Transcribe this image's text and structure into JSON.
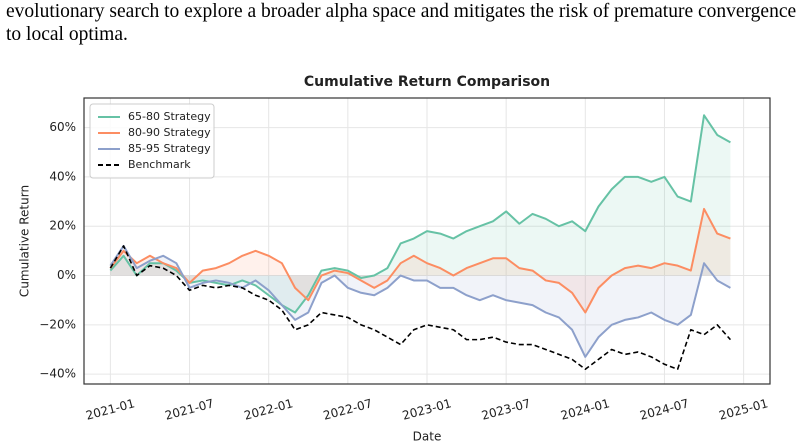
{
  "paragraph": "evolutionary search to explore a broader alpha space and mitigates the risk of premature convergence to local optima.",
  "chart_data": {
    "type": "line",
    "title": "Cumulative Return Comparison",
    "x_label": "Date",
    "y_label": "Cumulative Return",
    "x": [
      "2021-01",
      "2021-02",
      "2021-03",
      "2021-04",
      "2021-05",
      "2021-06",
      "2021-07",
      "2021-08",
      "2021-09",
      "2021-10",
      "2021-11",
      "2021-12",
      "2022-01",
      "2022-02",
      "2022-03",
      "2022-04",
      "2022-05",
      "2022-06",
      "2022-07",
      "2022-08",
      "2022-09",
      "2022-10",
      "2022-11",
      "2022-12",
      "2023-01",
      "2023-02",
      "2023-03",
      "2023-04",
      "2023-05",
      "2023-06",
      "2023-07",
      "2023-08",
      "2023-09",
      "2023-10",
      "2023-11",
      "2023-12",
      "2024-01",
      "2024-02",
      "2024-03",
      "2024-04",
      "2024-05",
      "2024-06",
      "2024-07",
      "2024-08",
      "2024-09",
      "2024-10",
      "2024-11",
      "2024-12"
    ],
    "series": [
      {
        "name": "65-80 Strategy",
        "color": "#66c2a5",
        "fill": true,
        "values": [
          2,
          8,
          0,
          5,
          5,
          2,
          -3,
          -2,
          -3,
          -4,
          -2,
          -4,
          -8,
          -12,
          -15,
          -8,
          2,
          3,
          2,
          -1,
          0,
          3,
          13,
          15,
          18,
          17,
          15,
          18,
          20,
          22,
          26,
          21,
          25,
          23,
          20,
          22,
          18,
          28,
          35,
          40,
          40,
          38,
          40,
          32,
          30,
          65,
          57,
          54
        ]
      },
      {
        "name": "80-90 Strategy",
        "color": "#fc8d62",
        "fill": true,
        "values": [
          3,
          10,
          5,
          8,
          5,
          3,
          -3,
          2,
          3,
          5,
          8,
          10,
          8,
          5,
          -5,
          -10,
          0,
          2,
          1,
          -2,
          -5,
          -2,
          5,
          8,
          5,
          3,
          0,
          3,
          5,
          7,
          7,
          3,
          2,
          -2,
          -3,
          -7,
          -15,
          -5,
          0,
          3,
          4,
          3,
          5,
          4,
          2,
          27,
          17,
          15
        ]
      },
      {
        "name": "85-95 Strategy",
        "color": "#8da0cb",
        "fill": true,
        "values": [
          4,
          12,
          3,
          6,
          8,
          5,
          -5,
          -3,
          -2,
          -3,
          -5,
          -2,
          -6,
          -12,
          -18,
          -15,
          -3,
          0,
          -5,
          -7,
          -8,
          -5,
          0,
          -2,
          -2,
          -5,
          -5,
          -8,
          -10,
          -8,
          -10,
          -11,
          -12,
          -15,
          -17,
          -22,
          -33,
          -25,
          -20,
          -18,
          -17,
          -15,
          -18,
          -20,
          -16,
          5,
          -2,
          -5
        ]
      },
      {
        "name": "Benchmark",
        "color": "#000000",
        "linestyle": "dashed",
        "values": [
          3,
          12,
          0,
          4,
          3,
          0,
          -6,
          -4,
          -5,
          -4,
          -5,
          -8,
          -10,
          -14,
          -22,
          -20,
          -15,
          -16,
          -17,
          -20,
          -22,
          -25,
          -28,
          -22,
          -20,
          -21,
          -22,
          -26,
          -26,
          -25,
          -27,
          -28,
          -28,
          -30,
          -32,
          -34,
          -38,
          -34,
          -30,
          -32,
          -31,
          -33,
          -36,
          -38,
          -22,
          -24,
          -20,
          -26
        ]
      }
    ],
    "xlim": [
      "2020-11",
      "2025-03"
    ],
    "xticks": [
      "2021-01",
      "2021-07",
      "2022-01",
      "2022-07",
      "2023-01",
      "2023-07",
      "2024-01",
      "2024-07",
      "2025-01"
    ],
    "ylim": [
      -44,
      72
    ],
    "yticks": [
      {
        "value": -40,
        "label": "−40%"
      },
      {
        "value": -20,
        "label": "−20%"
      },
      {
        "value": 0,
        "label": "0%"
      },
      {
        "value": 20,
        "label": "20%"
      },
      {
        "value": 40,
        "label": "40%"
      },
      {
        "value": 60,
        "label": "60%"
      }
    ],
    "grid": true,
    "legend": "upper left"
  }
}
